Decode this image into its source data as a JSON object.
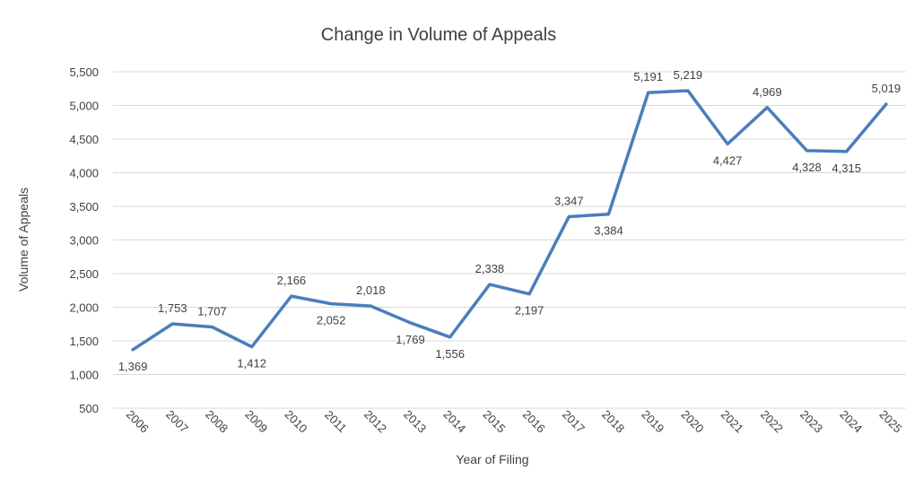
{
  "chart_data": {
    "type": "line",
    "title": "Change in Volume of Appeals",
    "xlabel": "Year of Filing",
    "ylabel": "Volume of Appeals",
    "categories": [
      "2006",
      "2007",
      "2008",
      "2009",
      "2010",
      "2011",
      "2012",
      "2013",
      "2014",
      "2015",
      "2016",
      "2017",
      "2018",
      "2019",
      "2020",
      "2021",
      "2022",
      "2023",
      "2024",
      "2025"
    ],
    "series": [
      {
        "values": [
          1369,
          1753,
          1707,
          1412,
          2166,
          2052,
          2018,
          1769,
          1556,
          2338,
          2197,
          3347,
          3384,
          5191,
          5219,
          4427,
          4969,
          4328,
          4315,
          5019
        ],
        "labels": [
          "1,369",
          "1,753",
          "1,707",
          "1,412",
          "2,166",
          "2,052",
          "2,018",
          "1,769",
          "1,556",
          "2,338",
          "2,197",
          "3,347",
          "3,384",
          "5,191",
          "5,219",
          "4,427",
          "4,969",
          "4,328",
          "4,315",
          "5,019"
        ],
        "color": "#4a7ebb"
      }
    ],
    "ylim": [
      500,
      5500
    ],
    "yticks": [
      500,
      1000,
      1500,
      2000,
      2500,
      3000,
      3500,
      4000,
      4500,
      5000,
      5500
    ],
    "ytick_labels": [
      "500",
      "1,000",
      "1,500",
      "2,000",
      "2,500",
      "3,000",
      "3,500",
      "4,000",
      "4,500",
      "5,000",
      "5,500"
    ],
    "grid": true,
    "legend": "none",
    "gridline_color": "#d9d9d9"
  }
}
